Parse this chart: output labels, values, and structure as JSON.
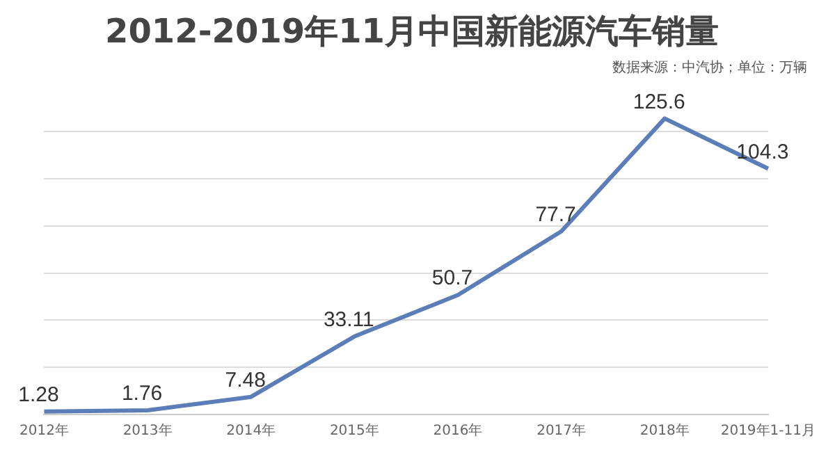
{
  "chart_data": {
    "type": "line",
    "title": "2012-2019年11月中国新能源汽车销量",
    "annotations": [
      "数据来源：中汽协；单位：万辆"
    ],
    "categories": [
      "2012年",
      "2013年",
      "2014年",
      "2015年",
      "2016年",
      "2017年",
      "2018年",
      "2019年1-11月"
    ],
    "series": [
      {
        "color": "#5b7db8",
        "values": [
          1.28,
          1.76,
          7.48,
          33.11,
          50.7,
          77.7,
          125.6,
          104.3
        ]
      }
    ],
    "yticks": [
      {
        "value": 0,
        "label": null
      },
      {
        "value": 20,
        "label": null
      },
      {
        "value": 40,
        "label": null
      },
      {
        "value": 60,
        "label": null
      },
      {
        "value": 80,
        "label": null
      },
      {
        "value": 100,
        "label": null
      },
      {
        "value": 120,
        "label": null
      }
    ],
    "grid": "y",
    "data_labels": true,
    "marker": "none",
    "line_style": "solid",
    "legend": false
  }
}
